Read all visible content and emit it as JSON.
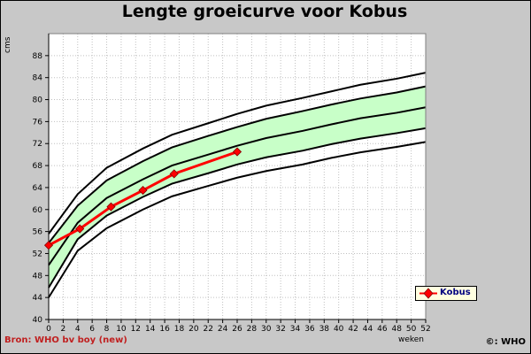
{
  "chart_data": {
    "type": "line",
    "title": "Lengte groeicurve voor Kobus",
    "xlabel": "weken",
    "ylabel": "cms",
    "xlim": [
      0,
      52
    ],
    "ylim": [
      40,
      92
    ],
    "x_ticks": [
      0,
      2,
      4,
      6,
      8,
      10,
      12,
      14,
      16,
      18,
      20,
      22,
      24,
      26,
      28,
      30,
      32,
      34,
      36,
      38,
      40,
      42,
      44,
      46,
      48,
      50,
      52
    ],
    "y_ticks": [
      40,
      44,
      48,
      52,
      56,
      60,
      64,
      68,
      72,
      76,
      80,
      84,
      88
    ],
    "grid": true,
    "legend_position": "bottom-right",
    "reference_curves": {
      "x": [
        0,
        4,
        8,
        13,
        17,
        22,
        26,
        30,
        35,
        39,
        43,
        48,
        52
      ],
      "lines": [
        [
          44.0,
          52.5,
          56.6,
          60.0,
          62.4,
          64.3,
          65.8,
          67.0,
          68.2,
          69.4,
          70.4,
          71.4,
          72.3
        ],
        [
          45.8,
          54.6,
          58.9,
          62.3,
          64.7,
          66.6,
          68.2,
          69.5,
          70.7,
          71.9,
          72.9,
          73.9,
          74.8
        ],
        [
          49.9,
          57.6,
          62.1,
          65.5,
          68.0,
          70.0,
          71.6,
          73.0,
          74.3,
          75.5,
          76.6,
          77.6,
          78.6
        ],
        [
          53.9,
          60.7,
          65.3,
          68.8,
          71.3,
          73.4,
          75.0,
          76.5,
          77.9,
          79.1,
          80.2,
          81.3,
          82.4
        ],
        [
          55.6,
          62.8,
          67.6,
          71.1,
          73.6,
          75.7,
          77.4,
          78.9,
          80.3,
          81.5,
          82.7,
          83.8,
          84.9
        ]
      ],
      "shaded_band": [
        1,
        3
      ]
    },
    "series": [
      {
        "name": "Kobus",
        "color": "#ff0000",
        "x": [
          0,
          4.3,
          8.6,
          13,
          17.3,
          26
        ],
        "values": [
          53.5,
          56.5,
          60.5,
          63.5,
          66.5,
          70.5
        ]
      }
    ]
  },
  "footer": {
    "source": "Bron: WHO bv boy (new)",
    "copyright": "©: WHO"
  },
  "colors": {
    "background": "#c8c8c8",
    "plot_area": "#ffffff",
    "band_fill": "#c8ffc8",
    "series": "#ff0000",
    "legend_bg": "#ffffe0",
    "legend_text": "#000080",
    "source_text": "#c02020"
  }
}
